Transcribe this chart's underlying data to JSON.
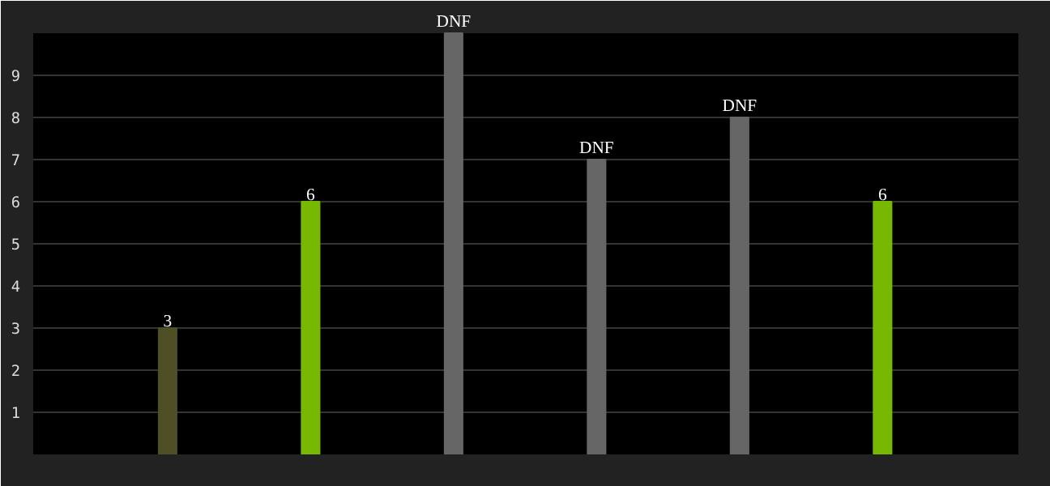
{
  "chart_data": {
    "type": "bar",
    "categories": [
      null,
      null,
      null,
      null,
      null,
      null
    ],
    "values": [
      3,
      6,
      10,
      7,
      8,
      6
    ],
    "colors": [
      "#4f4f26",
      "#76b900",
      "#666666",
      "#666666",
      "#666666",
      "#76b900"
    ],
    "value_labels": [
      "3",
      "6",
      "DNF",
      "DNF",
      "DNF",
      "6"
    ],
    "ylim": [
      0,
      10
    ],
    "yticks": [
      1,
      2,
      3,
      4,
      5,
      6,
      7,
      8,
      9
    ],
    "grid": "y",
    "tick_labels": "y"
  }
}
